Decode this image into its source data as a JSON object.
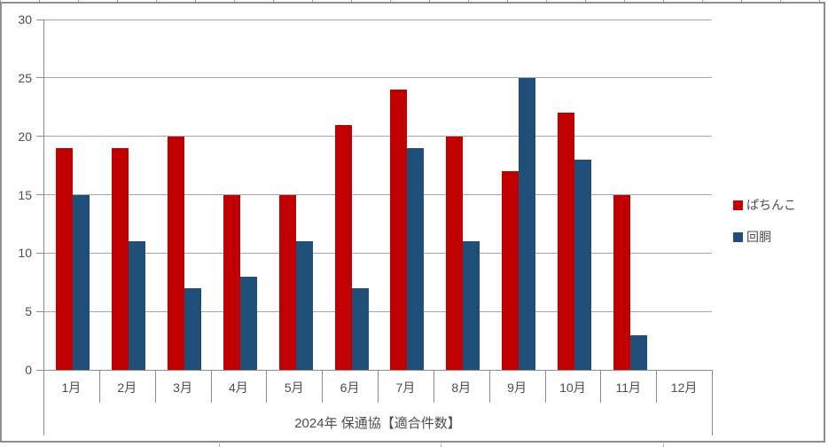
{
  "chart_data": {
    "type": "bar",
    "title": "2024年 保通協【適合件数】",
    "categories": [
      "1月",
      "2月",
      "3月",
      "4月",
      "5月",
      "6月",
      "7月",
      "8月",
      "9月",
      "10月",
      "11月",
      "12月"
    ],
    "series": [
      {
        "name": "ぱちんこ",
        "color": "#C00000",
        "values": [
          19,
          19,
          20,
          15,
          15,
          21,
          24,
          20,
          17,
          22,
          15,
          null
        ]
      },
      {
        "name": "回胴",
        "color": "#1F4E79",
        "values": [
          15,
          11,
          7,
          8,
          11,
          7,
          19,
          11,
          25,
          18,
          3,
          null
        ]
      }
    ],
    "xlabel": "2024年 保通協【適合件数】",
    "ylabel": "",
    "ylim": [
      0,
      30
    ],
    "yticks": [
      0,
      5,
      10,
      15,
      20,
      25,
      30
    ],
    "grid": true,
    "legend_position": "right",
    "colors": {
      "gridline": "#A6A6A6",
      "axis": "#8C8C8C",
      "chart_border": "#8E8E8E",
      "background": "#FFFFFF",
      "text": "#4D4D4D"
    }
  }
}
